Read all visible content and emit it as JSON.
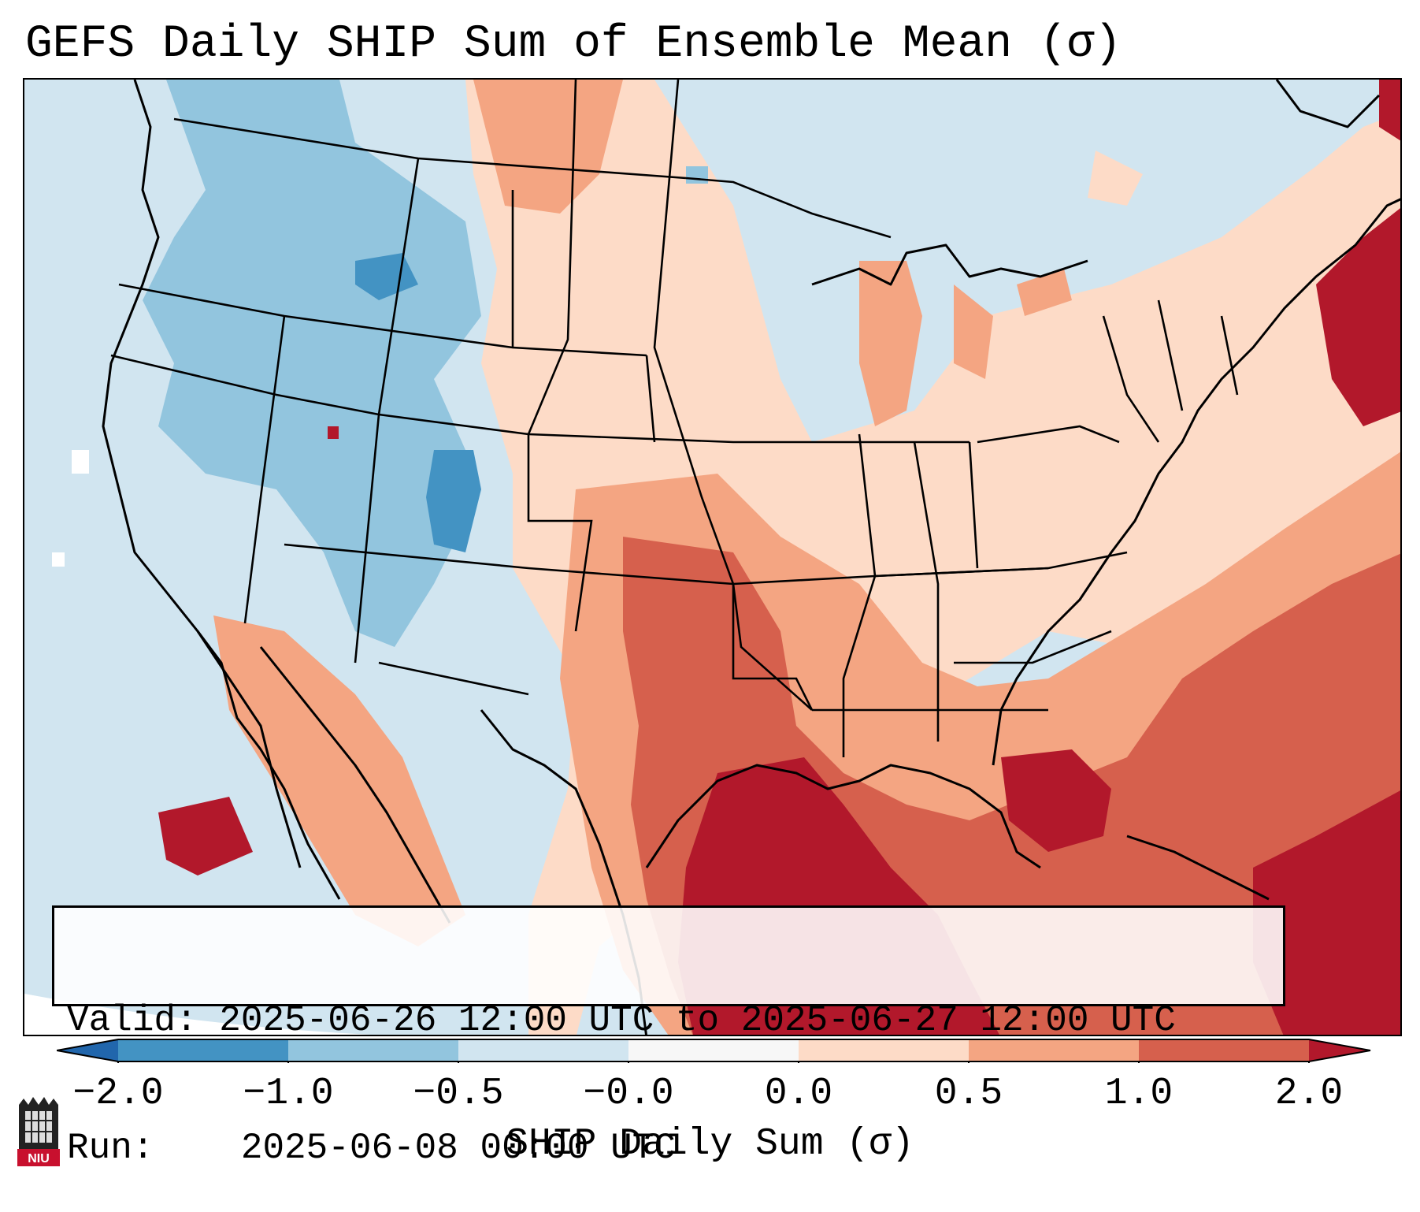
{
  "title": "GEFS Daily SHIP Sum of Ensemble Mean (σ)",
  "info": {
    "valid_label": "Valid:",
    "valid_value": "2025-06-26 12:00 UTC to 2025-06-27 12:00 UTC",
    "run_label": "Run:",
    "run_value": "2025-06-08 00:00 UTC"
  },
  "colorbar": {
    "label": "SHIP Daily Sum (σ)",
    "ticks": [
      "−2.0",
      "−1.0",
      "−0.5",
      "−0.0",
      "0.0",
      "0.5",
      "1.0",
      "2.0"
    ],
    "colors": [
      "#2166ac",
      "#4393c3",
      "#92c5de",
      "#d1e5f0",
      "#f7f7f7",
      "#fddbc7",
      "#f4a582",
      "#d6604d",
      "#b2182b"
    ]
  },
  "map": {
    "region": "Contiguous United States, southern Canada, northern Mexico, Gulf of Mexico, western Atlantic",
    "colors": {
      "strong_negative": "#4393c3",
      "moderate_negative": "#92c5de",
      "weak_negative": "#d1e5f0",
      "weak_positive": "#fddbc7",
      "moderate_positive": "#f4a582",
      "strong_positive": "#d6604d",
      "extreme_positive": "#b2182b",
      "missing": "#ffffff"
    }
  },
  "logo": {
    "text": "NIU",
    "color": "#c8102e"
  }
}
